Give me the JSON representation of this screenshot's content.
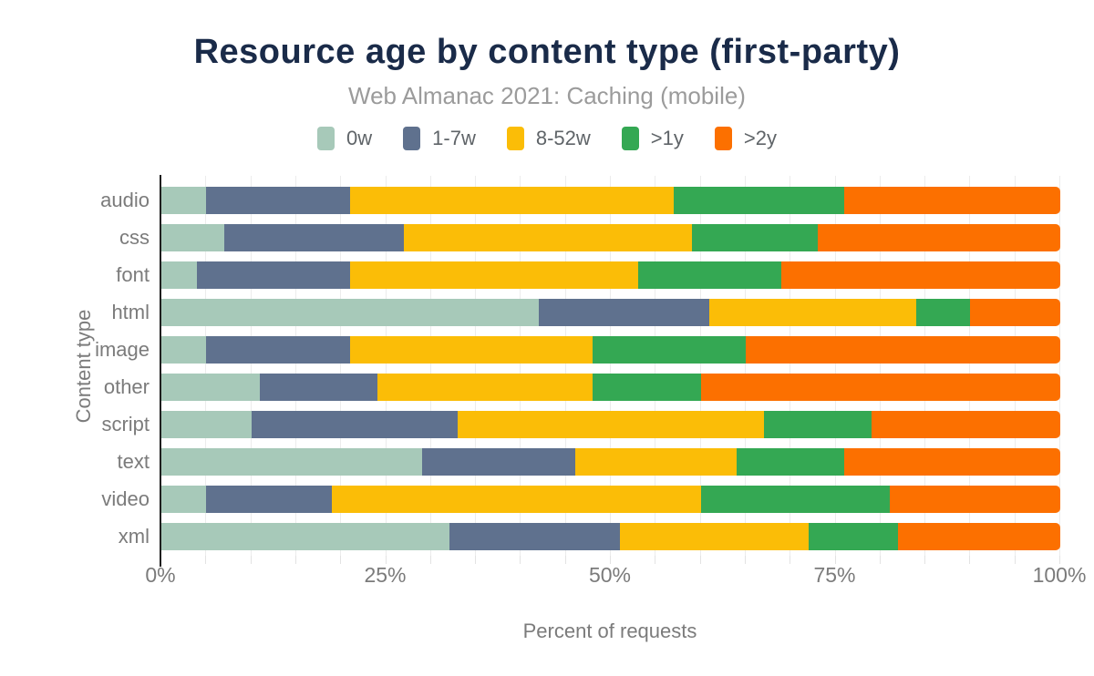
{
  "header": {
    "title": "Resource age by content type (first-party)",
    "subtitle": "Web Almanac 2021: Caching (mobile)"
  },
  "colors": {
    "title": "#1a2b49",
    "subtitle": "#9b9b9b",
    "axis_text": "#7b7b7b",
    "axis_line": "#1f1f1f",
    "gridline": "#ececec"
  },
  "chart_data": {
    "type": "bar",
    "orientation": "horizontal",
    "stacked": true,
    "title": "Resource age by content type (first-party)",
    "subtitle": "Web Almanac 2021: Caching (mobile)",
    "xlabel": "Percent of requests",
    "ylabel": "Content type",
    "xlim": [
      0,
      100
    ],
    "x_tick_labels": [
      "0%",
      "25%",
      "50%",
      "75%",
      "100%"
    ],
    "x_tick_values": [
      0,
      25,
      50,
      75,
      100
    ],
    "grid": "vertical minor gridlines every 5%",
    "legend_position": "top",
    "categories": [
      "audio",
      "css",
      "font",
      "html",
      "image",
      "other",
      "script",
      "text",
      "video",
      "xml"
    ],
    "series": [
      {
        "name": "0w",
        "color": "#a7c9b9",
        "values": [
          5,
          7,
          4,
          42,
          5,
          11,
          10,
          29,
          5,
          32
        ]
      },
      {
        "name": "1-7w",
        "color": "#5f718e",
        "values": [
          16,
          20,
          17,
          19,
          16,
          13,
          23,
          17,
          14,
          19
        ]
      },
      {
        "name": "8-52w",
        "color": "#fbbd07",
        "values": [
          36,
          32,
          32,
          23,
          27,
          24,
          34,
          18,
          41,
          21
        ]
      },
      {
        "name": ">1y",
        "color": "#34a853",
        "values": [
          19,
          14,
          16,
          6,
          17,
          12,
          12,
          12,
          21,
          10
        ]
      },
      {
        "name": ">2y",
        "color": "#fc7000",
        "values": [
          24,
          27,
          31,
          10,
          35,
          40,
          21,
          24,
          19,
          18
        ]
      }
    ]
  }
}
